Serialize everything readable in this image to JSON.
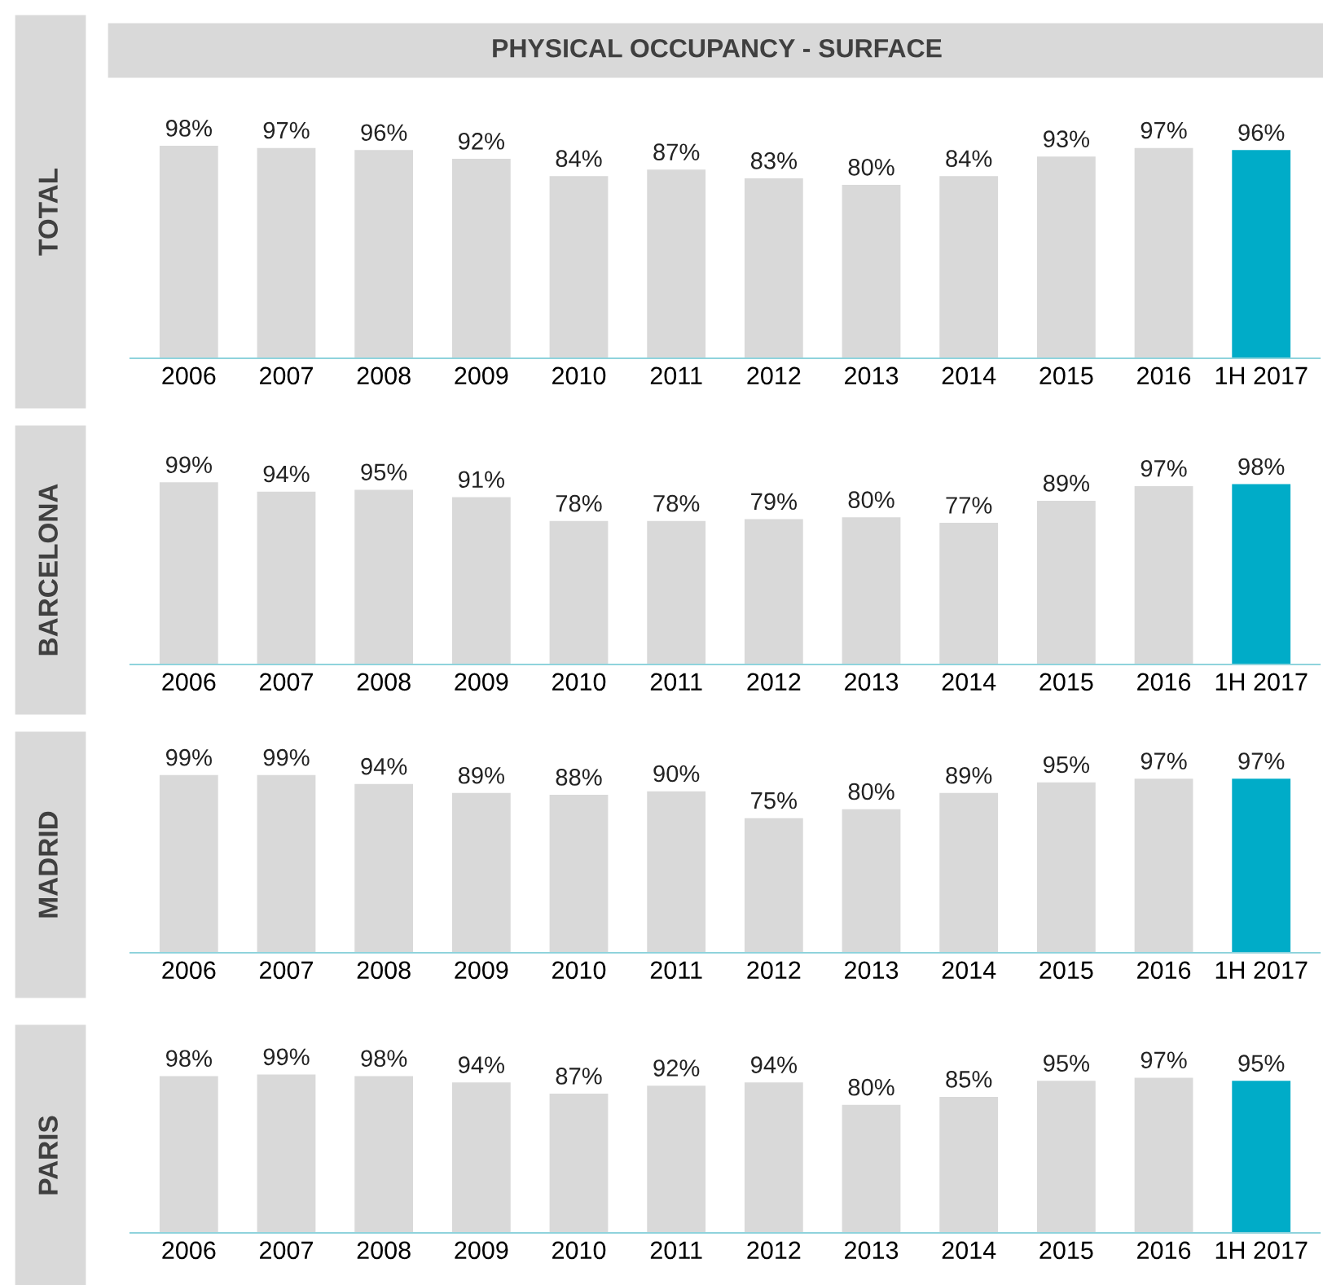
{
  "chart_data": [
    {
      "type": "bar",
      "title": "PHYSICAL OCCUPANCY - SURFACE",
      "ylabel": "TOTAL",
      "categories": [
        "2006",
        "2007",
        "2008",
        "2009",
        "2010",
        "2011",
        "2012",
        "2013",
        "2014",
        "2015",
        "2016",
        "1H 2017"
      ],
      "values": [
        98,
        97,
        96,
        92,
        84,
        87,
        83,
        80,
        84,
        93,
        97,
        96
      ],
      "value_labels": [
        "98%",
        "97%",
        "96%",
        "92%",
        "84%",
        "87%",
        "83%",
        "80%",
        "84%",
        "93%",
        "97%",
        "96%"
      ],
      "colors": [
        "#d9d9d9",
        "#d9d9d9",
        "#d9d9d9",
        "#d9d9d9",
        "#d9d9d9",
        "#d9d9d9",
        "#d9d9d9",
        "#d9d9d9",
        "#d9d9d9",
        "#d9d9d9",
        "#d9d9d9",
        "#00acc8"
      ],
      "tick_labels": "x",
      "grid": false,
      "legend": false
    },
    {
      "type": "bar",
      "ylabel": "BARCELONA",
      "categories": [
        "2006",
        "2007",
        "2008",
        "2009",
        "2010",
        "2011",
        "2012",
        "2013",
        "2014",
        "2015",
        "2016",
        "1H 2017"
      ],
      "values": [
        99,
        94,
        95,
        91,
        78,
        78,
        79,
        80,
        77,
        89,
        97,
        98
      ],
      "value_labels": [
        "99%",
        "94%",
        "95%",
        "91%",
        "78%",
        "78%",
        "79%",
        "80%",
        "77%",
        "89%",
        "97%",
        "98%"
      ],
      "colors": [
        "#d9d9d9",
        "#d9d9d9",
        "#d9d9d9",
        "#d9d9d9",
        "#d9d9d9",
        "#d9d9d9",
        "#d9d9d9",
        "#d9d9d9",
        "#d9d9d9",
        "#d9d9d9",
        "#d9d9d9",
        "#00acc8"
      ],
      "tick_labels": "x",
      "grid": false,
      "legend": false
    },
    {
      "type": "bar",
      "ylabel": "MADRID",
      "categories": [
        "2006",
        "2007",
        "2008",
        "2009",
        "2010",
        "2011",
        "2012",
        "2013",
        "2014",
        "2015",
        "2016",
        "1H 2017"
      ],
      "values": [
        99,
        99,
        94,
        89,
        88,
        90,
        75,
        80,
        89,
        95,
        97,
        97
      ],
      "value_labels": [
        "99%",
        "99%",
        "94%",
        "89%",
        "88%",
        "90%",
        "75%",
        "80%",
        "89%",
        "95%",
        "97%",
        "97%"
      ],
      "colors": [
        "#d9d9d9",
        "#d9d9d9",
        "#d9d9d9",
        "#d9d9d9",
        "#d9d9d9",
        "#d9d9d9",
        "#d9d9d9",
        "#d9d9d9",
        "#d9d9d9",
        "#d9d9d9",
        "#d9d9d9",
        "#00acc8"
      ],
      "tick_labels": "x",
      "grid": false,
      "legend": false
    },
    {
      "type": "bar",
      "ylabel": "PARIS",
      "categories": [
        "2006",
        "2007",
        "2008",
        "2009",
        "2010",
        "2011",
        "2012",
        "2013",
        "2014",
        "2015",
        "2016",
        "1H 2017"
      ],
      "values": [
        98,
        99,
        98,
        94,
        87,
        92,
        94,
        80,
        85,
        95,
        97,
        95
      ],
      "value_labels": [
        "98%",
        "99%",
        "98%",
        "94%",
        "87%",
        "92%",
        "94%",
        "80%",
        "85%",
        "95%",
        "97%",
        "95%"
      ],
      "colors": [
        "#d9d9d9",
        "#d9d9d9",
        "#d9d9d9",
        "#d9d9d9",
        "#d9d9d9",
        "#d9d9d9",
        "#d9d9d9",
        "#d9d9d9",
        "#d9d9d9",
        "#d9d9d9",
        "#d9d9d9",
        "#00acc8"
      ],
      "tick_labels": "x",
      "grid": false,
      "legend": false
    }
  ]
}
